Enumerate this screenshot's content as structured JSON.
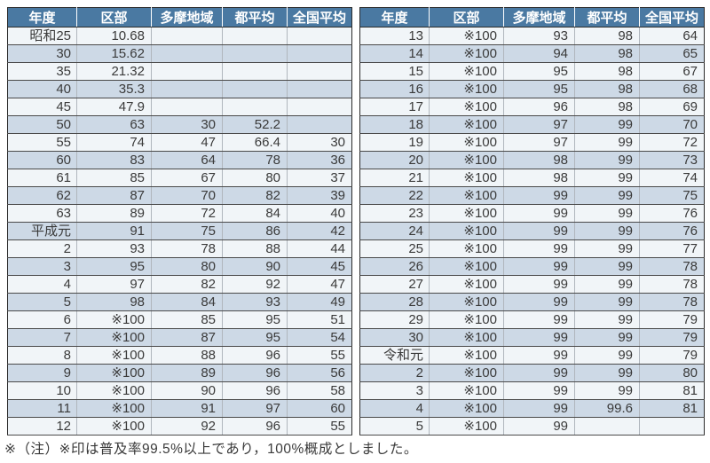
{
  "colors": {
    "page_bg": "#ffffff",
    "header_bg": "#4a79a2",
    "header_text": "#ffffff",
    "row_light": "#f1f5f8",
    "row_shade": "#cdd9e6",
    "cell_text": "#3a3a3a"
  },
  "headers": [
    "年度",
    "区部",
    "多摩地域",
    "都平均",
    "全国平均"
  ],
  "tables": [
    {
      "name": "coverage-table-left",
      "rows": [
        [
          "昭和25",
          "10.68",
          "",
          "",
          ""
        ],
        [
          "30",
          "15.62",
          "",
          "",
          ""
        ],
        [
          "35",
          "21.32",
          "",
          "",
          ""
        ],
        [
          "40",
          "35.3",
          "",
          "",
          ""
        ],
        [
          "45",
          "47.9",
          "",
          "",
          ""
        ],
        [
          "50",
          "63",
          "30",
          "52.2",
          ""
        ],
        [
          "55",
          "74",
          "47",
          "66.4",
          "30"
        ],
        [
          "60",
          "83",
          "64",
          "78",
          "36"
        ],
        [
          "61",
          "85",
          "67",
          "80",
          "37"
        ],
        [
          "62",
          "87",
          "70",
          "82",
          "39"
        ],
        [
          "63",
          "89",
          "72",
          "84",
          "40"
        ],
        [
          "平成元",
          "91",
          "75",
          "86",
          "42"
        ],
        [
          "2",
          "93",
          "78",
          "88",
          "44"
        ],
        [
          "3",
          "95",
          "80",
          "90",
          "45"
        ],
        [
          "4",
          "97",
          "82",
          "92",
          "47"
        ],
        [
          "5",
          "98",
          "84",
          "93",
          "49"
        ],
        [
          "6",
          "※100",
          "85",
          "95",
          "51"
        ],
        [
          "7",
          "※100",
          "87",
          "95",
          "54"
        ],
        [
          "8",
          "※100",
          "88",
          "96",
          "55"
        ],
        [
          "9",
          "※100",
          "89",
          "96",
          "56"
        ],
        [
          "10",
          "※100",
          "90",
          "96",
          "58"
        ],
        [
          "11",
          "※100",
          "91",
          "97",
          "60"
        ],
        [
          "12",
          "※100",
          "92",
          "96",
          "55"
        ]
      ]
    },
    {
      "name": "coverage-table-right",
      "rows": [
        [
          "13",
          "※100",
          "93",
          "98",
          "64"
        ],
        [
          "14",
          "※100",
          "94",
          "98",
          "65"
        ],
        [
          "15",
          "※100",
          "95",
          "98",
          "67"
        ],
        [
          "16",
          "※100",
          "95",
          "98",
          "68"
        ],
        [
          "17",
          "※100",
          "96",
          "98",
          "69"
        ],
        [
          "18",
          "※100",
          "97",
          "99",
          "70"
        ],
        [
          "19",
          "※100",
          "97",
          "99",
          "72"
        ],
        [
          "20",
          "※100",
          "98",
          "99",
          "73"
        ],
        [
          "21",
          "※100",
          "98",
          "99",
          "74"
        ],
        [
          "22",
          "※100",
          "99",
          "99",
          "75"
        ],
        [
          "23",
          "※100",
          "99",
          "99",
          "76"
        ],
        [
          "24",
          "※100",
          "99",
          "99",
          "76"
        ],
        [
          "25",
          "※100",
          "99",
          "99",
          "77"
        ],
        [
          "26",
          "※100",
          "99",
          "99",
          "78"
        ],
        [
          "27",
          "※100",
          "99",
          "99",
          "78"
        ],
        [
          "28",
          "※100",
          "99",
          "99",
          "78"
        ],
        [
          "29",
          "※100",
          "99",
          "99",
          "79"
        ],
        [
          "30",
          "※100",
          "99",
          "99",
          "79"
        ],
        [
          "令和元",
          "※100",
          "99",
          "99",
          "79"
        ],
        [
          "2",
          "※100",
          "99",
          "99",
          "80"
        ],
        [
          "3",
          "※100",
          "99",
          "99",
          "81"
        ],
        [
          "4",
          "※100",
          "99",
          "99.6",
          "81"
        ],
        [
          "5",
          "※100",
          "99",
          "",
          ""
        ]
      ]
    }
  ],
  "note": "※（注）※印は普及率99.5%以上であり，100%概成としました。"
}
